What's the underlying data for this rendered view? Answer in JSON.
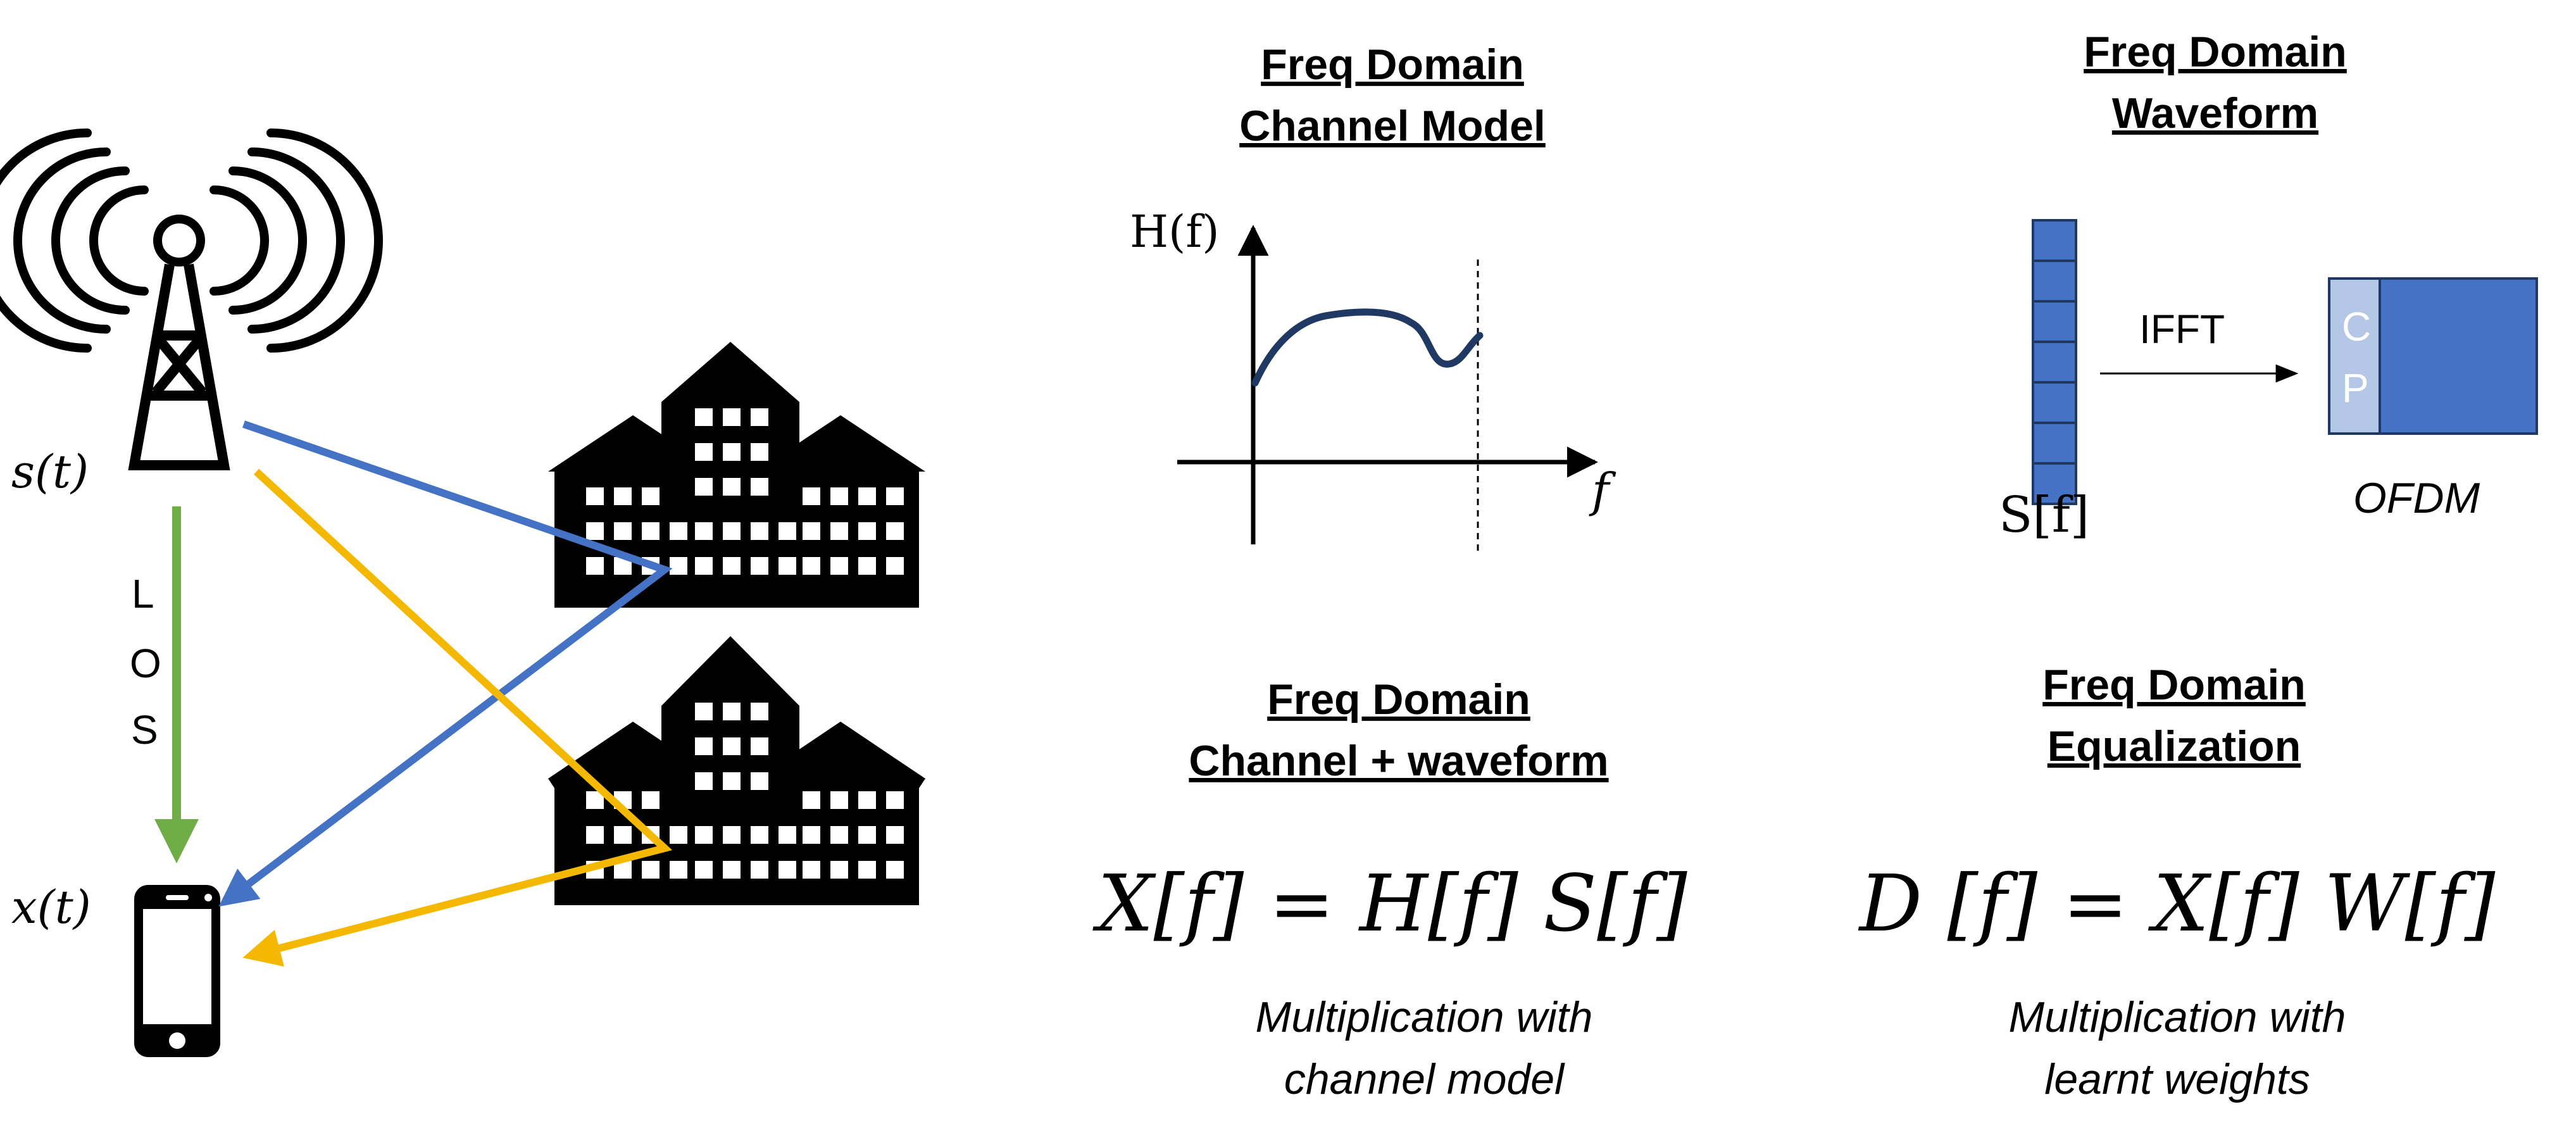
{
  "colors": {
    "path_blue": "#4472c4",
    "path_yellow": "#f5b800",
    "los_green": "#70ad47",
    "curve_navy": "#1f3864",
    "ofdm_blue": "#4472c4",
    "cp_light": "#b4c7e7",
    "black": "#000000"
  },
  "icons": {
    "tower": "cell-tower-icon",
    "phone": "smartphone-icon",
    "building": "building-icon"
  },
  "scene": {
    "tx_label": "s(t)",
    "rx_label": "x(t)",
    "los_letters": [
      "L",
      "O",
      "S"
    ]
  },
  "channel_model": {
    "heading_line1": "Freq Domain",
    "heading_line2": "Channel Model",
    "y_axis_label": "H(f)",
    "x_axis_label": "f"
  },
  "waveform": {
    "heading_line1": "Freq Domain",
    "heading_line2": "Waveform",
    "ifft_label": "IFFT",
    "cp_letters": [
      "C",
      "P"
    ],
    "symbol_label": "S[f]",
    "ofdm_label": "OFDM"
  },
  "channel_waveform": {
    "heading_line1": "Freq Domain",
    "heading_line2": "Channel + waveform",
    "equation": "X[f] = H[f] S[f]",
    "caption_line1": "Multiplication with",
    "caption_line2": "channel model"
  },
  "equalization": {
    "heading_line1": "Freq Domain",
    "heading_line2": "Equalization",
    "equation": "D [f] = X[f] W[f]",
    "caption_line1": "Multiplication with",
    "caption_line2": "learnt weights"
  }
}
